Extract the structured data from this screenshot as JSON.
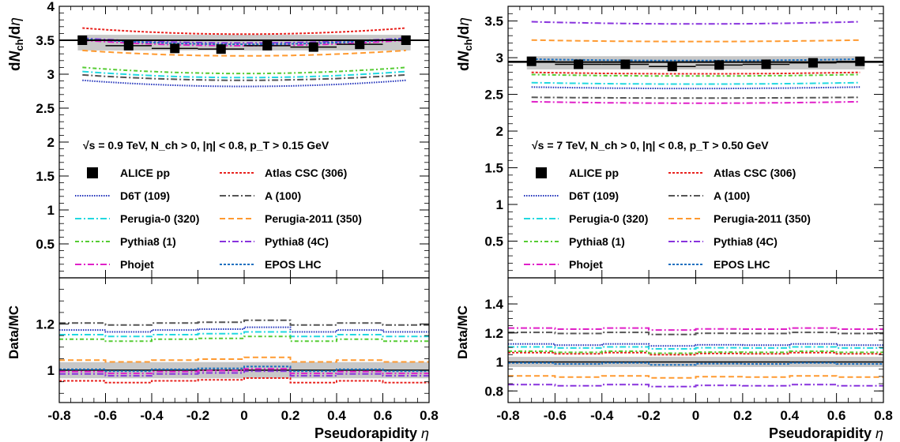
{
  "x_axis": {
    "label": "Pseudorapidity",
    "symbol": "η"
  },
  "chart_data": [
    {
      "type": "line",
      "panel": "left",
      "energy_label": "√s = 0.9 TeV, N_ch > 0, |η| < 0.8, p_T > 0.15 GeV",
      "ylabel": "dN_ch/dη",
      "ratio_ylabel": "Data/MC",
      "xlim": [
        -0.8,
        0.8
      ],
      "ylim": [
        0,
        4
      ],
      "ratio_ylim": [
        0.86,
        1.4
      ],
      "x_ticks": [
        "-0.8",
        "-0.6",
        "-0.4",
        "-0.2",
        "0",
        "0.2",
        "0.4",
        "0.6",
        "0.8"
      ],
      "y_ticks": [
        "0.5",
        "1",
        "1.5",
        "2",
        "2.5",
        "3",
        "3.5",
        "4"
      ],
      "ratio_ticks": [
        "1",
        "1.2"
      ],
      "data_line": 3.5,
      "band": {
        "low": 3.35,
        "high": 3.58
      },
      "data": {
        "x": [
          -0.7,
          -0.5,
          -0.3,
          -0.1,
          0.1,
          0.3,
          0.5,
          0.7
        ],
        "y": [
          3.5,
          3.42,
          3.38,
          3.37,
          3.42,
          3.4,
          3.44,
          3.5
        ]
      },
      "series": [
        {
          "name": "Atlas CSC (306)",
          "color": "#e8231f",
          "dash": "3,2",
          "edge": 3.68,
          "mid": 3.59
        },
        {
          "name": "D6T (109)",
          "color": "#2233bb",
          "dash": "1.5,1.5",
          "edge": 2.91,
          "mid": 2.82
        },
        {
          "name": "A (100)",
          "color": "#555555",
          "dash": "8,3,2,3",
          "edge": 2.99,
          "mid": 2.91
        },
        {
          "name": "Perugia-0 (320)",
          "color": "#22d8e0",
          "dash": "8,3,2,3",
          "edge": 3.04,
          "mid": 2.95
        },
        {
          "name": "Perugia-2011 (350)",
          "color": "#ff9a30",
          "dash": "7,4",
          "edge": 3.35,
          "mid": 3.27
        },
        {
          "name": "Pythia8 (1)",
          "color": "#55cc33",
          "dash": "5,3,2,3",
          "edge": 3.1,
          "mid": 3.01
        },
        {
          "name": "Pythia8 (4C)",
          "color": "#8833dd",
          "dash": "8,3,2,3",
          "edge": 3.53,
          "mid": 3.46
        },
        {
          "name": "Phojet",
          "color": "#e020c8",
          "dash": "8,3,2,3",
          "edge": 3.5,
          "mid": 3.42
        },
        {
          "name": "EPOS LHC",
          "color": "#1a6fc0",
          "dash": "3,2",
          "edge": 3.52,
          "mid": 3.44
        }
      ],
      "ratios": [
        1.0,
        0.95,
        1.17,
        1.2,
        1.15,
        1.04,
        1.13,
        0.98,
        0.99,
        1.0
      ],
      "ratio_band": {
        "low": 0.965,
        "high": 1.035
      }
    },
    {
      "type": "line",
      "panel": "right",
      "energy_label": "√s = 7 TeV, N_ch > 0, |η| < 0.8, p_T > 0.50 GeV",
      "ylabel": "dN_ch/dη",
      "ratio_ylabel": "Data/MC",
      "xlim": [
        -0.8,
        0.8
      ],
      "ylim": [
        0,
        3.7
      ],
      "ratio_ylim": [
        0.72,
        1.58
      ],
      "x_ticks": [
        "-0.8",
        "-0.6",
        "-0.4",
        "-0.2",
        "0",
        "0.2",
        "0.4",
        "0.6",
        "0.8"
      ],
      "y_ticks": [
        "0.5",
        "1",
        "1.5",
        "2",
        "2.5",
        "3",
        "3.5"
      ],
      "ratio_ticks": [
        "0.8",
        "1",
        "1.2",
        "1.4"
      ],
      "data_line": 2.94,
      "band": {
        "low": 2.84,
        "high": 3.02
      },
      "data": {
        "x": [
          -0.7,
          -0.5,
          -0.3,
          -0.1,
          0.1,
          0.3,
          0.5,
          0.7
        ],
        "y": [
          2.95,
          2.91,
          2.91,
          2.88,
          2.9,
          2.91,
          2.93,
          2.95
        ]
      },
      "series": [
        {
          "name": "Atlas CSC (306)",
          "color": "#e8231f",
          "dash": "3,2",
          "edge": 2.8,
          "mid": 2.78
        },
        {
          "name": "D6T (109)",
          "color": "#2233bb",
          "dash": "1.5,1.5",
          "edge": 2.6,
          "mid": 2.58
        },
        {
          "name": "A (100)",
          "color": "#555555",
          "dash": "8,3,2,3",
          "edge": 2.46,
          "mid": 2.45
        },
        {
          "name": "Perugia-0 (320)",
          "color": "#22d8e0",
          "dash": "8,3,2,3",
          "edge": 2.66,
          "mid": 2.64
        },
        {
          "name": "Perugia-2011 (350)",
          "color": "#ff9a30",
          "dash": "7,4",
          "edge": 3.24,
          "mid": 3.22
        },
        {
          "name": "Pythia8 (1)",
          "color": "#55cc33",
          "dash": "5,3,2,3",
          "edge": 2.77,
          "mid": 2.75
        },
        {
          "name": "Pythia8 (4C)",
          "color": "#8833dd",
          "dash": "8,3,2,3",
          "edge": 3.49,
          "mid": 3.46
        },
        {
          "name": "Phojet",
          "color": "#e020c8",
          "dash": "8,3,2,3",
          "edge": 2.4,
          "mid": 2.38
        },
        {
          "name": "EPOS LHC",
          "color": "#1a6fc0",
          "dash": "3,2",
          "edge": 2.98,
          "mid": 2.96
        }
      ],
      "ratios": [
        1.0,
        1.06,
        1.12,
        1.2,
        1.1,
        0.9,
        1.07,
        0.84,
        1.23,
        0.99
      ],
      "ratio_band": {
        "low": 0.965,
        "high": 1.035
      }
    }
  ],
  "legend": {
    "data_label": "ALICE pp",
    "entries": [
      "Atlas CSC (306)",
      "D6T (109)",
      "A (100)",
      "Perugia-0 (320)",
      "Perugia-2011 (350)",
      "Pythia8 (1)",
      "Pythia8 (4C)",
      "Phojet",
      "EPOS LHC"
    ]
  }
}
